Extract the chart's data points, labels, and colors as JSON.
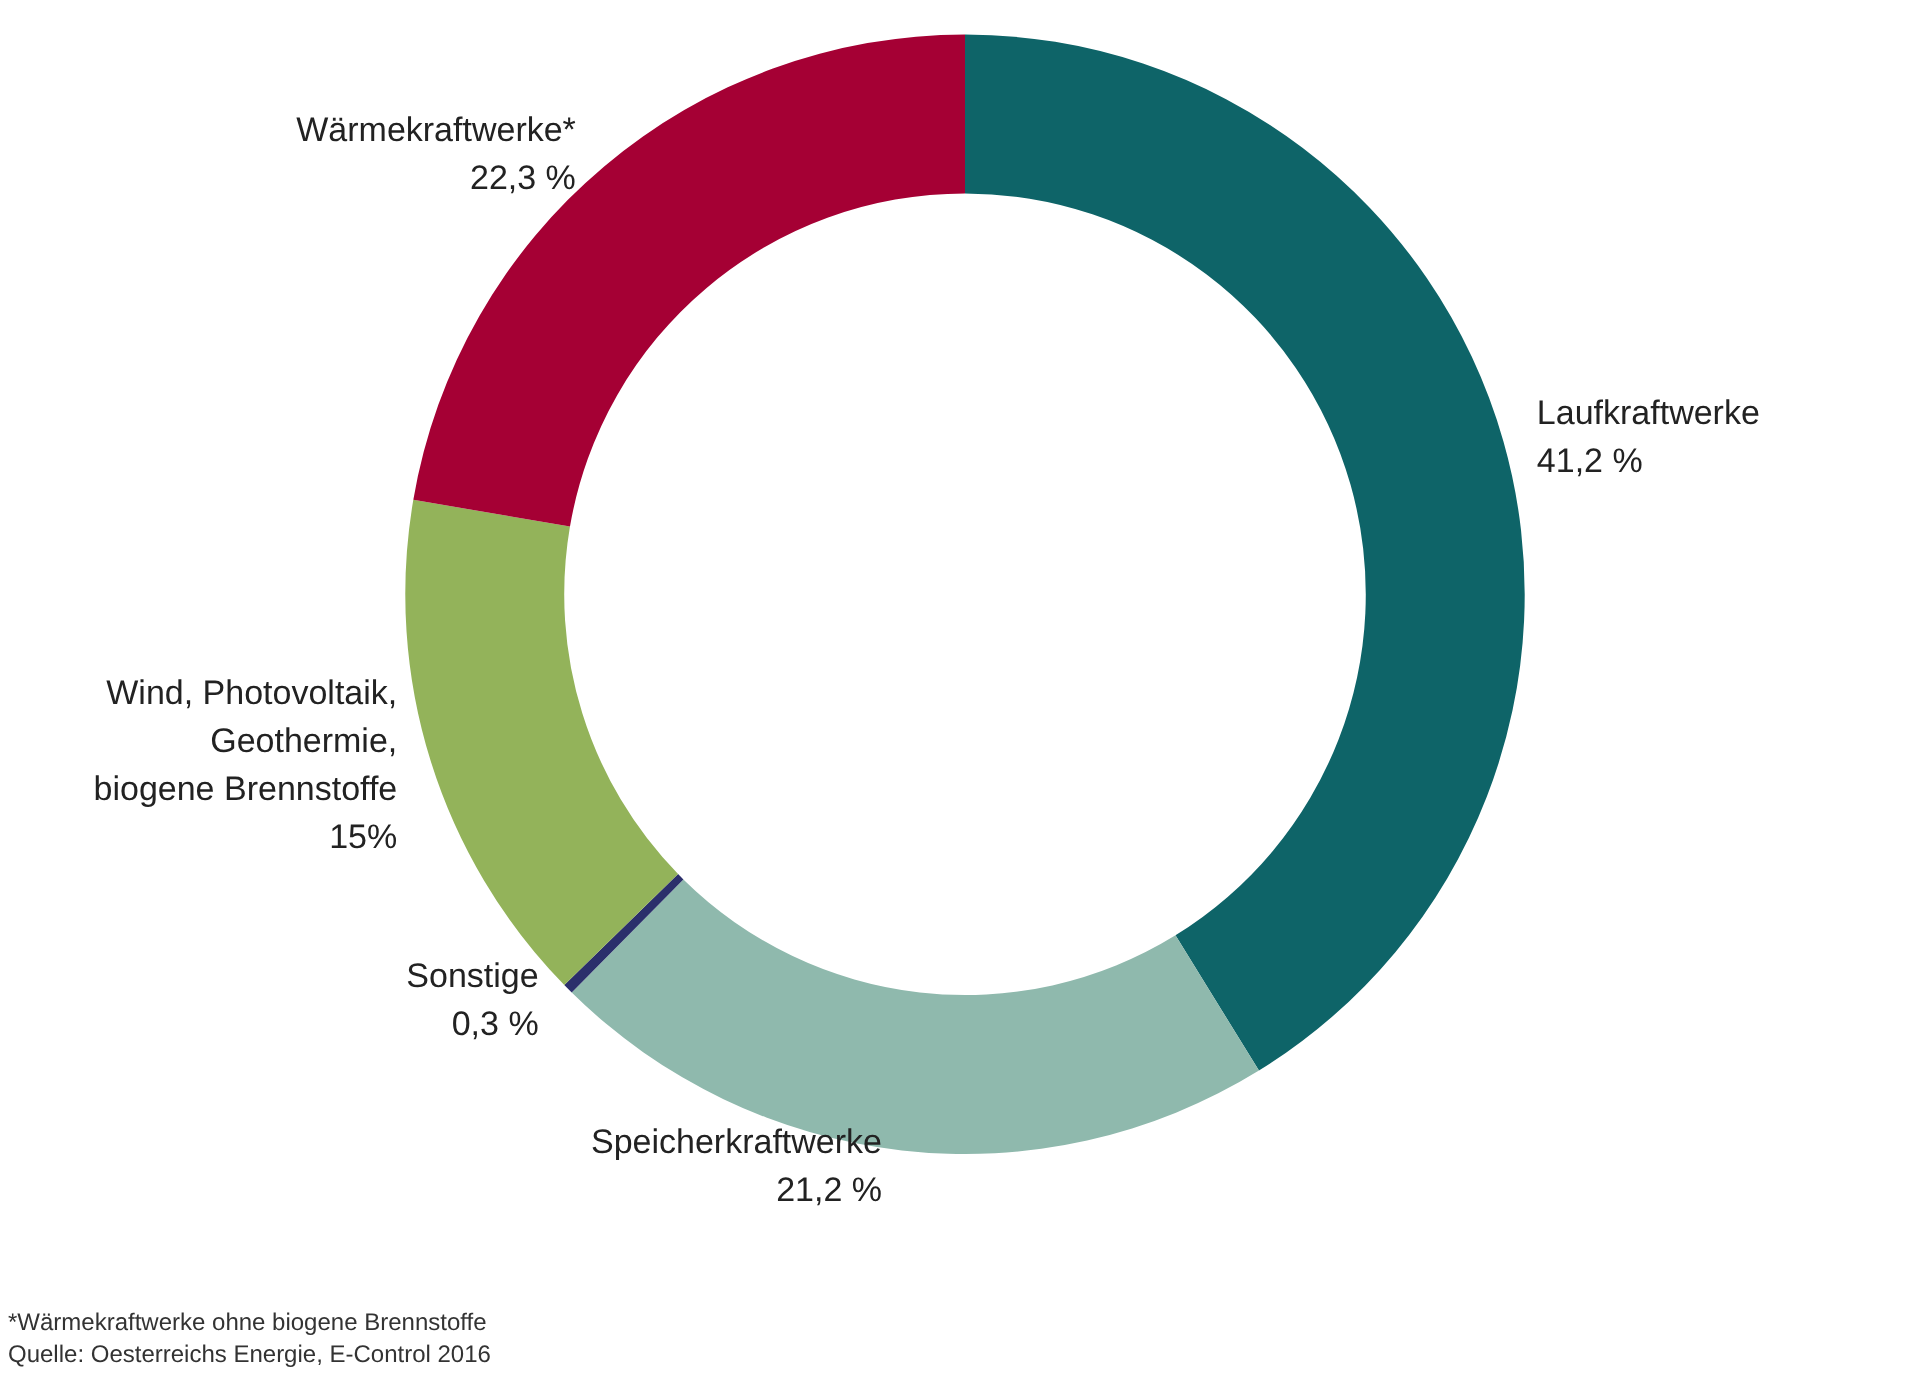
{
  "chart_data": {
    "type": "donut",
    "categories": [
      "Laufkraftwerke",
      "Speicherkraftwerke",
      "Sonstige",
      "Wind, Photovoltaik,\nGeothermie,\nbiogene Brennstoffe",
      "Wärmekraftwerke*"
    ],
    "values": [
      41.2,
      21.2,
      0.3,
      15,
      22.3
    ],
    "value_labels": [
      "41,2 %",
      "21,2 %",
      "0,3 %",
      "15%",
      "22,3 %"
    ],
    "colors": [
      "#0e6468",
      "#8fb9ad",
      "#2b2f6b",
      "#93b35a",
      "#a50034"
    ],
    "legend": false,
    "annotations": [
      "*Wärmekraftwerke ohne biogene Brennstoffe",
      "Quelle: Oesterreichs Energie, E-Control 2016"
    ]
  }
}
